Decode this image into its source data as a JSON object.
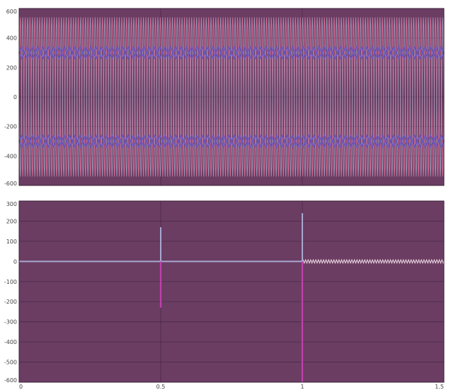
{
  "colors": {
    "background": "#6b3d63",
    "grid": "#4a2a47",
    "frame": "#3a2234",
    "wave_a": "#e0709a",
    "wave_b": "#9a9bb8",
    "envelope": "#6a55c0",
    "flat_line": "#a8a8d0",
    "spike_down": "#c040b0",
    "ripple": "#f0d0d8"
  },
  "chart_data": [
    {
      "type": "line",
      "title": "",
      "xlabel": "",
      "ylabel": "",
      "xlim": [
        0,
        1.5
      ],
      "ylim": [
        -600,
        600
      ],
      "grid": true,
      "ytick_labels": [
        "600",
        "400",
        "200",
        "0",
        "-200",
        "-400",
        "-600"
      ],
      "ytick_values": [
        600,
        400,
        200,
        0,
        -200,
        -400,
        -600
      ],
      "xgrid": [
        0,
        0.5,
        1,
        1.5
      ],
      "series": [
        {
          "amplitude": 540,
          "cycles": 88
        },
        {
          "amplitude": 540,
          "cycles": 88,
          "phase_offset_cycles": 0.5
        }
      ],
      "envelope_band_levels": [
        300,
        -300
      ],
      "envelope_period_fraction_of_xlim": 0.0125
    },
    {
      "type": "line",
      "title": "",
      "xlabel": "",
      "ylabel": "",
      "xlim": [
        0,
        1.5
      ],
      "ylim": [
        -600,
        300
      ],
      "grid": true,
      "ytick_labels": [
        "300",
        "200",
        "100",
        "0",
        "-100",
        "-200",
        "-300",
        "-400",
        "-500",
        "-600"
      ],
      "ytick_values": [
        300,
        200,
        100,
        0,
        -100,
        -200,
        -300,
        -400,
        -500,
        -600
      ],
      "xtick_labels": [
        "0",
        "0.5",
        "1",
        "1.5"
      ],
      "xtick_values": [
        0,
        0.5,
        1,
        1.5
      ],
      "baseline": 0,
      "spikes_up": [
        {
          "x": 0.5,
          "y": 170
        },
        {
          "x": 1.0,
          "y": 240
        }
      ],
      "spikes_down": [
        {
          "x": 0.5,
          "y": -230
        },
        {
          "x": 1.0,
          "y": -600
        }
      ],
      "ripple": {
        "x_start": 1.0,
        "x_end": 1.5,
        "amplitude": 8
      }
    }
  ]
}
